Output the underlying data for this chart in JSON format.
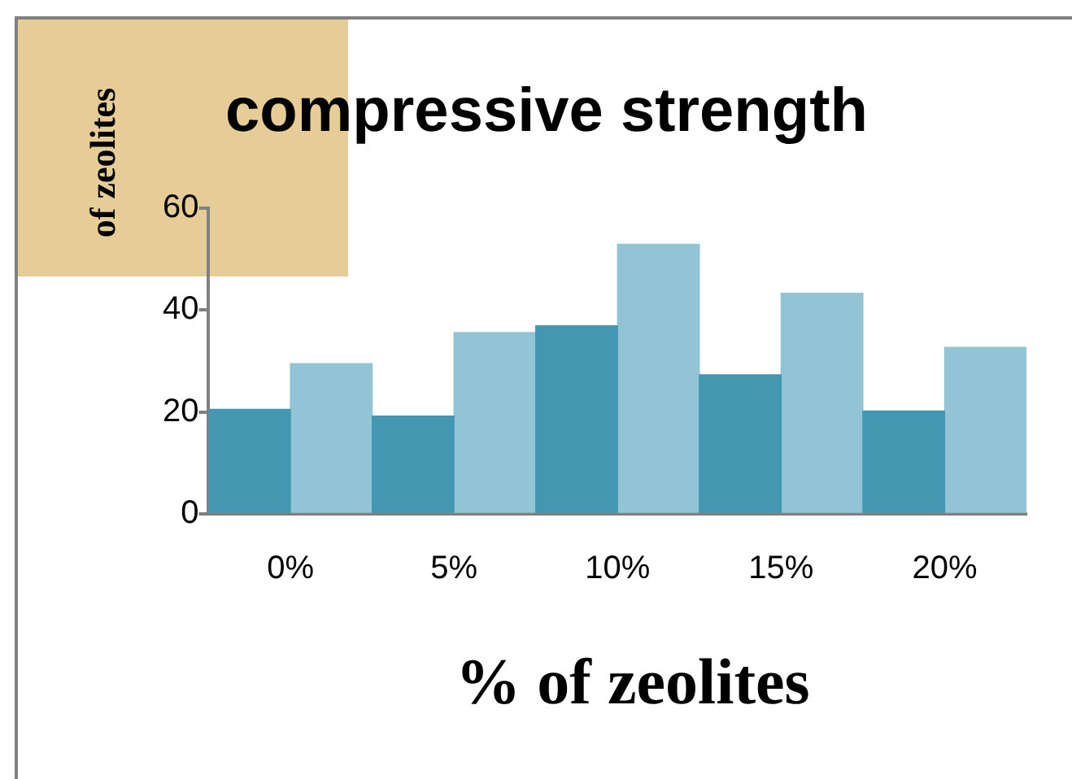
{
  "chart_data": {
    "type": "bar",
    "title": "compressive strength",
    "xlabel": "% of zeolites",
    "ylabel": "of zeolites",
    "categories": [
      "0%",
      "5%",
      "10%",
      "15%",
      "20%"
    ],
    "series": [
      {
        "color": "#4497b0",
        "values": [
          20.5,
          19.2,
          36.9,
          27.3,
          20.2
        ]
      },
      {
        "color": "#92c4d6",
        "values": [
          29.5,
          35.6,
          52.9,
          43.3,
          32.7
        ]
      }
    ],
    "ylim": [
      0,
      60
    ],
    "yticks": [
      0,
      20,
      40,
      60
    ],
    "grid": false,
    "legend": false
  }
}
